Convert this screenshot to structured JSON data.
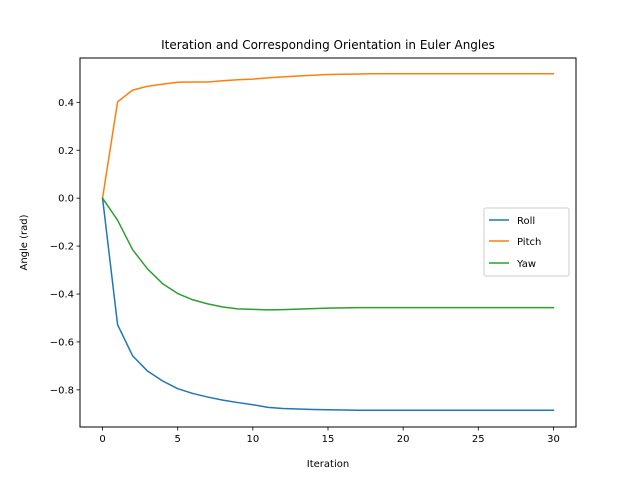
{
  "chart_data": {
    "type": "line",
    "title": "Iteration and Corresponding Orientation in Euler Angles",
    "xlabel": "Iteration",
    "ylabel": "Angle (rad)",
    "xlim": [
      -1.5,
      31.5
    ],
    "ylim": [
      -0.955,
      0.585
    ],
    "xticks": [
      0,
      5,
      10,
      15,
      20,
      25,
      30
    ],
    "yticks": [
      -0.8,
      -0.6,
      -0.4,
      -0.2,
      0.0,
      0.2,
      0.4
    ],
    "xtick_labels": [
      "0",
      "5",
      "10",
      "15",
      "20",
      "25",
      "30"
    ],
    "ytick_labels": [
      "−0.8",
      "−0.6",
      "−0.4",
      "−0.2",
      "0.0",
      "0.2",
      "0.4"
    ],
    "grid": false,
    "legend_position": "center-right",
    "x": [
      0,
      1,
      2,
      3,
      4,
      5,
      6,
      7,
      8,
      9,
      10,
      11,
      12,
      13,
      14,
      15,
      16,
      17,
      18,
      19,
      20,
      21,
      22,
      23,
      24,
      25,
      26,
      27,
      28,
      29,
      30
    ],
    "series": [
      {
        "name": "Roll",
        "color": "#1f77b4",
        "values": [
          0.0,
          -0.528,
          -0.658,
          -0.722,
          -0.763,
          -0.795,
          -0.815,
          -0.83,
          -0.843,
          -0.853,
          -0.862,
          -0.873,
          -0.878,
          -0.88,
          -0.882,
          -0.883,
          -0.884,
          -0.885,
          -0.885,
          -0.885,
          -0.885,
          -0.885,
          -0.885,
          -0.885,
          -0.885,
          -0.885,
          -0.885,
          -0.885,
          -0.885,
          -0.885,
          -0.885
        ]
      },
      {
        "name": "Pitch",
        "color": "#ff7f0e",
        "values": [
          0.0,
          0.402,
          0.451,
          0.467,
          0.476,
          0.484,
          0.485,
          0.485,
          0.49,
          0.494,
          0.497,
          0.502,
          0.506,
          0.51,
          0.513,
          0.516,
          0.517,
          0.518,
          0.519,
          0.519,
          0.519,
          0.519,
          0.519,
          0.519,
          0.519,
          0.519,
          0.519,
          0.519,
          0.519,
          0.519,
          0.519
        ]
      },
      {
        "name": "Yaw",
        "color": "#2ca02c",
        "values": [
          0.0,
          -0.092,
          -0.215,
          -0.296,
          -0.357,
          -0.398,
          -0.424,
          -0.441,
          -0.454,
          -0.462,
          -0.464,
          -0.466,
          -0.465,
          -0.463,
          -0.461,
          -0.459,
          -0.458,
          -0.457,
          -0.457,
          -0.457,
          -0.457,
          -0.457,
          -0.457,
          -0.457,
          -0.457,
          -0.457,
          -0.457,
          -0.457,
          -0.457,
          -0.457,
          -0.457
        ]
      }
    ]
  }
}
